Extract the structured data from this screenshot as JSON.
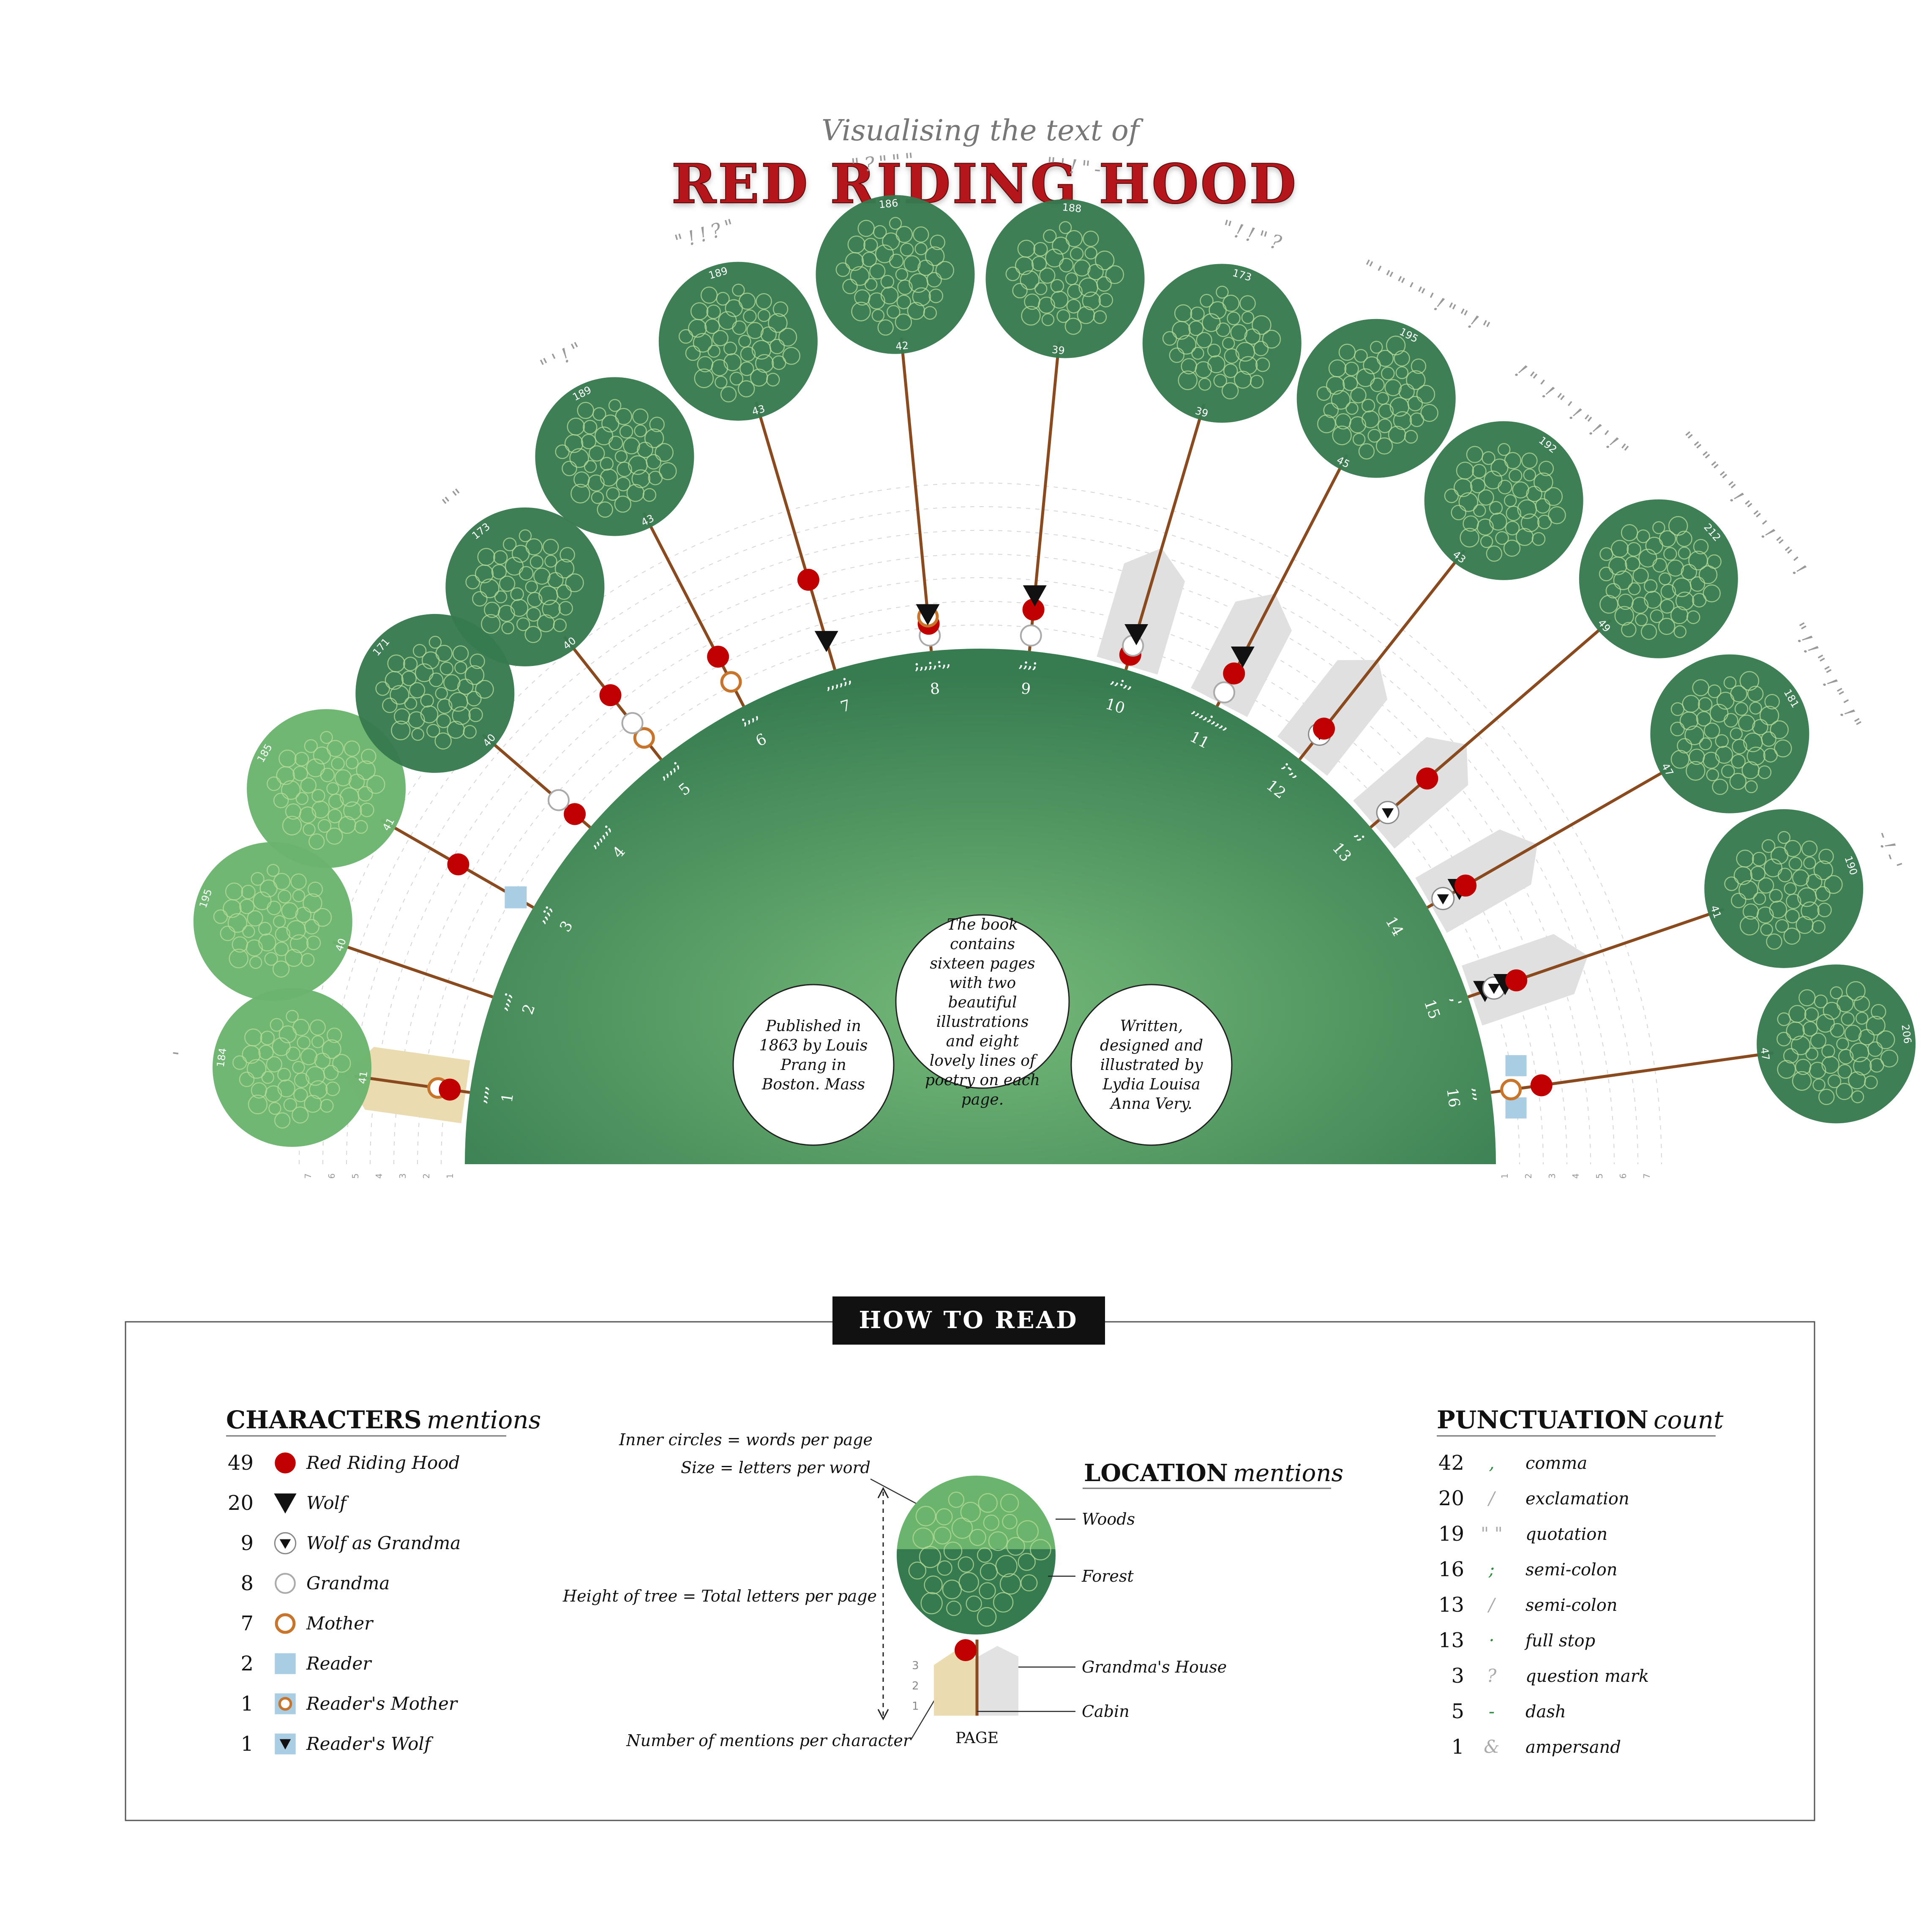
{
  "header": {
    "subtitle": "Visualising the text of",
    "title": "RED RIDING HOOD"
  },
  "colors": {
    "title_red": "#b5121b",
    "dark_green": "#367a4f",
    "light_green": "#6ab46e",
    "trunk": "#8a4a1e",
    "red_hood": "#c00000",
    "mother": "#c8742a",
    "reader": "#a9cde3",
    "cabin": "#eadcb0",
    "house": "#e0e0e0",
    "punct": "#999999",
    "dash_green": "#2e8b3e"
  },
  "info": {
    "center": "The book contains sixteen pages with two beautiful illustrations and eight lovely lines of poetry on each page.",
    "left": "Published in 1863 by Louis Prang in Boston. Mass",
    "right": "Written, designed and illustrated by Lydia Louisa Anna Very."
  },
  "scale_ticks": [
    "1",
    "2",
    "3",
    "4",
    "5",
    "6",
    "7"
  ],
  "pages": [
    {
      "page": "1",
      "letters": "184",
      "words": "41",
      "tree": "light",
      "radial": 8,
      "inner": ",,,,",
      "punct": "'",
      "marks": [
        {
          "type": "mother",
          "r": 1
        },
        {
          "type": "red",
          "r": 0.5
        }
      ],
      "loc": "cabin"
    },
    {
      "page": "2",
      "letters": "195",
      "words": "40",
      "tree": "light",
      "radial": 4,
      "inner": ",,,;",
      "punct": "",
      "marks": [],
      "loc": ""
    },
    {
      "page": "3",
      "letters": "185",
      "words": "41",
      "tree": "light",
      "radial": 4,
      "inner": ",,;;",
      "punct": "",
      "marks": [
        {
          "type": "reader",
          "r": 0.5
        },
        {
          "type": "red",
          "r": 3.3
        }
      ],
      "loc": ""
    },
    {
      "page": "4",
      "letters": "171",
      "words": "40",
      "tree": "dark",
      "radial": 4,
      "inner": ",,,,,;",
      "punct": "",
      "marks": [
        {
          "type": "red",
          "r": 0.5
        },
        {
          "type": "grandma",
          "r": 1.4
        }
      ],
      "loc": ""
    },
    {
      "page": "5",
      "letters": "173",
      "words": "40",
      "tree": "dark",
      "radial": 4,
      "inner": ",,,,;",
      "punct": "\"\"",
      "marks": [
        {
          "type": "mother",
          "r": 0.8
        },
        {
          "type": "grandma",
          "r": 1.6
        },
        {
          "type": "red",
          "r": 3.1
        }
      ],
      "loc": ""
    },
    {
      "page": "6",
      "letters": "189",
      "words": "43",
      "tree": "dark",
      "radial": 4,
      "inner": ";,,,",
      "punct": "\"'!\"",
      "marks": [
        {
          "type": "mother",
          "r": 0.8
        },
        {
          "type": "red",
          "r": 2.0
        }
      ],
      "loc": ""
    },
    {
      "page": "7",
      "letters": "189",
      "words": "43",
      "tree": "dark",
      "radial": 4,
      "inner": ",,,,;,",
      "punct": "\"!!?\"",
      "marks": [
        {
          "type": "wolf",
          "r": 0.9
        },
        {
          "type": "red",
          "r": 3.6
        }
      ],
      "loc": ""
    },
    {
      "page": "8",
      "letters": "186",
      "words": "42",
      "tree": "dark",
      "radial": 4,
      "inner": ";,,;,:,,",
      "punct": "\"?\"\"\"",
      "marks": [
        {
          "type": "grandma",
          "r": 0.3
        },
        {
          "type": "red",
          "r": 0.8
        },
        {
          "type": "mother",
          "r": 1.1
        },
        {
          "type": "wolf",
          "r": 1.2
        }
      ],
      "loc": ""
    },
    {
      "page": "9",
      "letters": "188",
      "words": "39",
      "tree": "dark",
      "radial": 4,
      "inner": ",;,;",
      "punct": "\"'!\"-",
      "marks": [
        {
          "type": "grandma",
          "r": 0.3
        },
        {
          "type": "red",
          "r": 1.4
        },
        {
          "type": "wolf",
          "r": 2.0
        }
      ],
      "loc": ""
    },
    {
      "page": "10",
      "letters": "173",
      "words": "39",
      "tree": "dark",
      "radial": 4,
      "inner": ",,:,,",
      "punct": "\"!!\"?",
      "marks": [
        {
          "type": "red",
          "r": 0.3
        },
        {
          "type": "grandma",
          "r": 0.7
        },
        {
          "type": "wolf",
          "r": 1.2
        }
      ],
      "loc": "house"
    },
    {
      "page": "11",
      "letters": "195",
      "words": "45",
      "tree": "dark",
      "radial": 4,
      "inner": ",,,,;,,,,",
      "punct": "\"'\"\"'\"'!\"\"!\"",
      "marks": [
        {
          "type": "grandma",
          "r": 0.3
        },
        {
          "type": "red",
          "r": 1.2
        },
        {
          "type": "wolf",
          "r": 2.0
        }
      ],
      "loc": "house"
    },
    {
      "page": "12",
      "letters": "192",
      "words": "43",
      "tree": "dark",
      "radial": 4,
      "inner": ";-,,",
      "punct": "!\"'!\"'!\"!'!\"",
      "marks": [
        {
          "type": "wolfgma",
          "r": 1.0
        },
        {
          "type": "red",
          "r": 1.3
        }
      ],
      "loc": "house"
    },
    {
      "page": "13",
      "letters": "212",
      "words": "49",
      "tree": "dark",
      "radial": 4,
      "inner": ",;",
      "punct": "\"\"\"\"\"\"!\"\"'!\"\"'!",
      "marks": [
        {
          "type": "wolfgma",
          "r": 0.6
        },
        {
          "type": "red",
          "r": 2.8
        }
      ],
      "loc": "house"
    },
    {
      "page": "14",
      "letters": "181",
      "words": "47",
      "tree": "dark",
      "radial": 4,
      "inner": "",
      "punct": "\"!!\"\"!\"'!\"",
      "marks": [
        {
          "type": "wolfgma",
          "r": 0.4
        },
        {
          "type": "wolf",
          "r": 1.2
        },
        {
          "type": "red",
          "r": 1.5
        }
      ],
      "loc": "house"
    },
    {
      "page": "15",
      "letters": "190",
      "words": "41",
      "tree": "dark",
      "radial": 4,
      "inner": ",'",
      "punct": "-!-'",
      "marks": [
        {
          "type": "wolf",
          "r": 0.4
        },
        {
          "type": "wolfgma",
          "r": 0.8
        },
        {
          "type": "wolf",
          "r": 1.3
        },
        {
          "type": "red",
          "r": 1.8
        }
      ],
      "loc": "house"
    },
    {
      "page": "16",
      "letters": "206",
      "words": "47",
      "tree": "dark",
      "radial": 8,
      "inner": ",,,",
      "punct": "!!'!?&",
      "marks": [
        {
          "type": "mother",
          "r": 0.5
        },
        {
          "type": "red",
          "r": 1.8
        }
      ],
      "loc": "reader"
    }
  ],
  "legend": {
    "title": "HOW TO READ",
    "characters": {
      "title_caps": "CHARACTERS",
      "title_it": "mentions",
      "items": [
        {
          "count": "49",
          "label": "Red Riding Hood",
          "icon": "red"
        },
        {
          "count": "20",
          "label": "Wolf",
          "icon": "wolf"
        },
        {
          "count": "9",
          "label": "Wolf as Grandma",
          "icon": "wolfgma"
        },
        {
          "count": "8",
          "label": "Grandma",
          "icon": "grandma"
        },
        {
          "count": "7",
          "label": "Mother",
          "icon": "mother"
        },
        {
          "count": "2",
          "label": "Reader",
          "icon": "reader"
        },
        {
          "count": "1",
          "label": "Reader's Mother",
          "icon": "readermother"
        },
        {
          "count": "1",
          "label": "Reader's Wolf",
          "icon": "readerwolf"
        }
      ]
    },
    "diagram": {
      "inner_circles": "Inner circles = words per page",
      "size": "Size = letters per word",
      "height": "Height of tree = Total letters per page",
      "mentions": "Number of mentions per character",
      "page": "PAGE",
      "scale": [
        "3",
        "2",
        "1"
      ]
    },
    "location": {
      "title_caps": "LOCATION",
      "title_it": "mentions",
      "woods": "Woods",
      "forest": "Forest",
      "grandma_house": "Grandma's House",
      "cabin": "Cabin"
    },
    "punctuation": {
      "title_caps": "PUNCTUATION",
      "title_it": "count",
      "items": [
        {
          "count": "42",
          "glyph": ",",
          "label": "comma"
        },
        {
          "count": "20",
          "glyph": "/",
          "label": "exclamation"
        },
        {
          "count": "19",
          "glyph": "\" \"",
          "label": "quotation"
        },
        {
          "count": "16",
          "glyph": ";",
          "label": "semi-colon"
        },
        {
          "count": "13",
          "glyph": "/",
          "label": "semi-colon"
        },
        {
          "count": "13",
          "glyph": "·",
          "label": "full stop"
        },
        {
          "count": "3",
          "glyph": "?",
          "label": "question mark"
        },
        {
          "count": "5",
          "glyph": "-",
          "label": "dash"
        },
        {
          "count": "1",
          "glyph": "&",
          "label": "ampersand"
        }
      ]
    }
  }
}
